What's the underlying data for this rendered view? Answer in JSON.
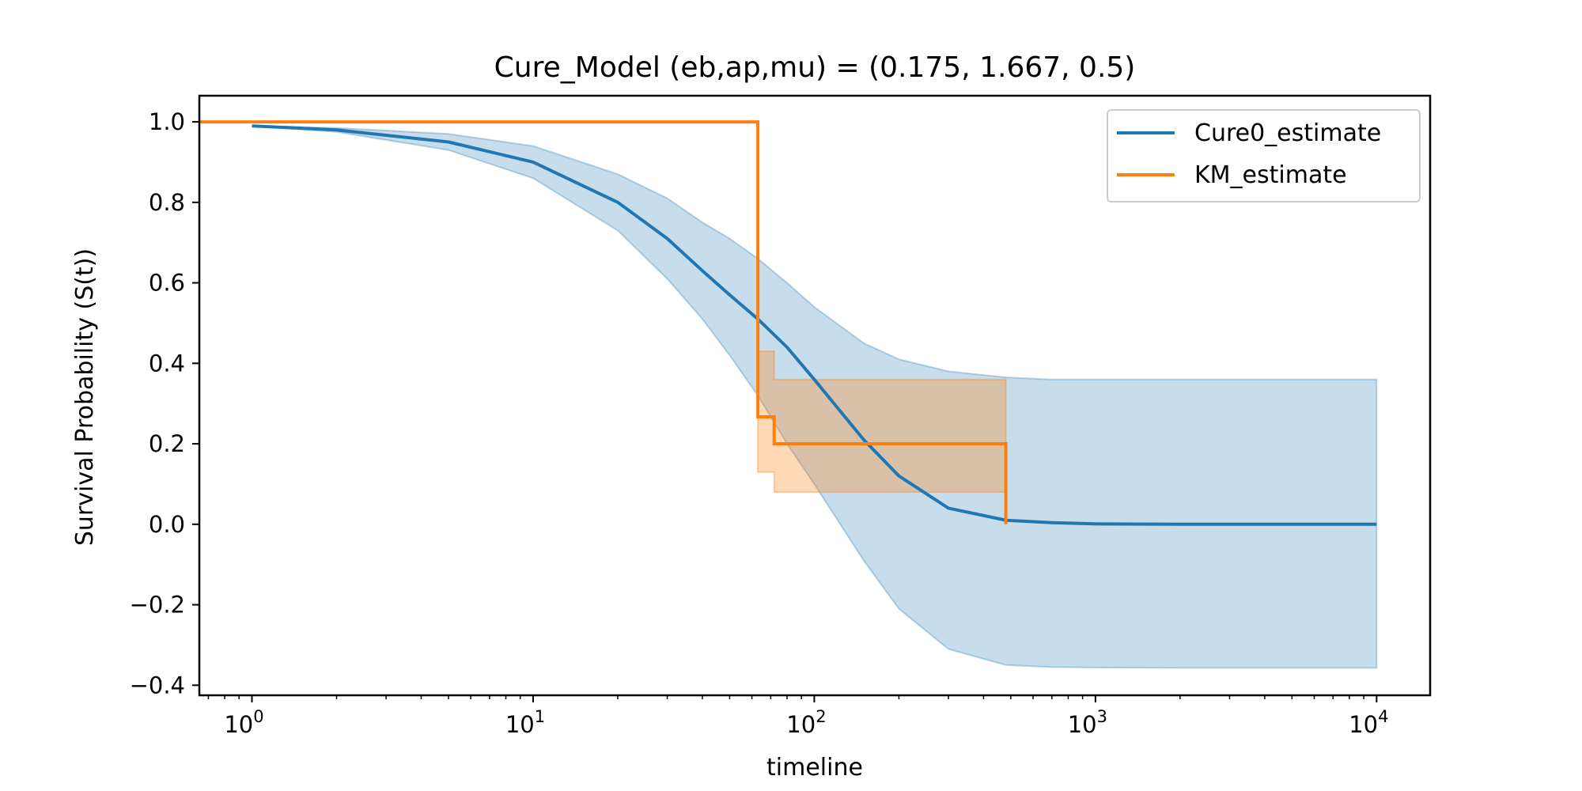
{
  "chart_data": {
    "type": "line",
    "title": "Cure_Model (eb,ap,mu) = (0.175, 1.667, 0.5)",
    "xlabel": "timeline",
    "ylabel": "Survival Probability (S(t))",
    "xscale": "log",
    "xlim": [
      0.65,
      15500
    ],
    "ylim": [
      -0.425,
      1.065
    ],
    "x_ticks": [
      {
        "value": 1,
        "exp": "0"
      },
      {
        "value": 10,
        "exp": "1"
      },
      {
        "value": 100,
        "exp": "2"
      },
      {
        "value": 1000,
        "exp": "3"
      },
      {
        "value": 10000,
        "exp": "4"
      }
    ],
    "y_ticks": [
      {
        "value": 1.0,
        "label": "1.0"
      },
      {
        "value": 0.8,
        "label": "0.8"
      },
      {
        "value": 0.6,
        "label": "0.6"
      },
      {
        "value": 0.4,
        "label": "0.4"
      },
      {
        "value": 0.2,
        "label": "0.2"
      },
      {
        "value": 0.0,
        "label": "0.0"
      },
      {
        "value": -0.2,
        "label": "−0.2"
      },
      {
        "value": -0.4,
        "label": "−0.4"
      }
    ],
    "grid": false,
    "legend_position": "top-right",
    "series": [
      {
        "name": "Cure0_estimate",
        "kind": "line",
        "color": "#1f77b4",
        "x": [
          1,
          2,
          5,
          10,
          20,
          30,
          40,
          50,
          63,
          80,
          100,
          150,
          200,
          300,
          480,
          700,
          1000,
          2000,
          5000,
          10000
        ],
        "y": [
          0.99,
          0.98,
          0.95,
          0.9,
          0.8,
          0.71,
          0.63,
          0.57,
          0.51,
          0.44,
          0.36,
          0.21,
          0.12,
          0.04,
          0.01,
          0.004,
          0.001,
          0.0,
          0.0,
          0.0
        ],
        "ci_lower": [
          0.99,
          0.975,
          0.93,
          0.86,
          0.73,
          0.61,
          0.51,
          0.42,
          0.32,
          0.2,
          0.1,
          -0.09,
          -0.21,
          -0.31,
          -0.35,
          -0.355,
          -0.356,
          -0.357,
          -0.357,
          -0.357
        ],
        "ci_upper": [
          0.99,
          0.985,
          0.97,
          0.94,
          0.87,
          0.81,
          0.75,
          0.71,
          0.66,
          0.6,
          0.54,
          0.45,
          0.41,
          0.38,
          0.365,
          0.36,
          0.36,
          0.36,
          0.36,
          0.36
        ]
      },
      {
        "name": "KM_estimate",
        "kind": "step",
        "color": "#ff7f0e",
        "x": [
          0.65,
          63,
          72,
          480
        ],
        "y": [
          1.0,
          0.267,
          0.2,
          0.0
        ],
        "ci_x": [
          63,
          72,
          480
        ],
        "ci_lower": [
          0.13,
          0.08
        ],
        "ci_upper": [
          0.43,
          0.36
        ]
      }
    ]
  }
}
